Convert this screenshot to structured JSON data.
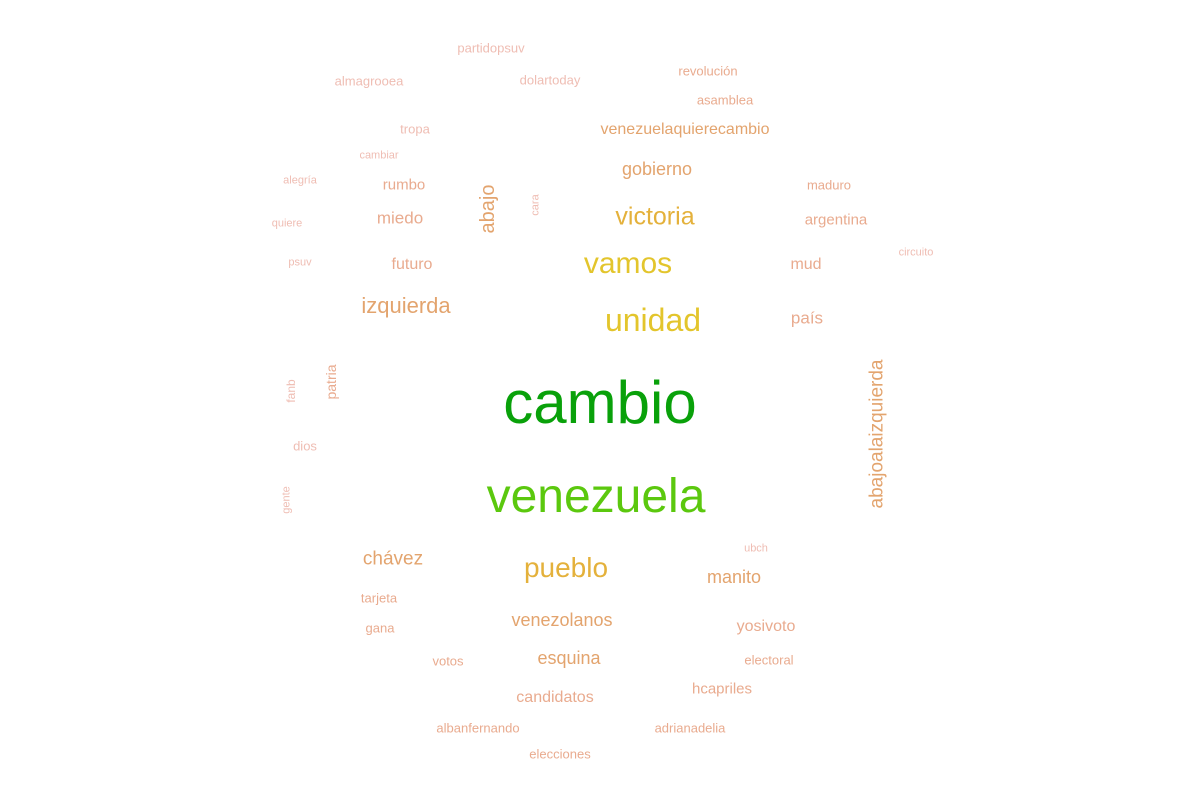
{
  "palette": {
    "background": "#ffffff",
    "top": "#09a10a",
    "second": "#5bc80e",
    "gold": "#e3c52c",
    "amber": "#e4b13b",
    "tan": "#e3a46e",
    "salmon": "#e9ab8f",
    "pink": "#efbdb3"
  },
  "words": [
    {
      "text": "cambio",
      "tier": "top"
    },
    {
      "text": "venezuela",
      "tier": "second"
    },
    {
      "text": "vamos",
      "tier": "gold"
    },
    {
      "text": "unidad",
      "tier": "gold"
    },
    {
      "text": "victoria",
      "tier": "amber"
    },
    {
      "text": "pueblo",
      "tier": "amber"
    },
    {
      "text": "izquierda",
      "tier": "tan"
    },
    {
      "text": "abajoalaizquierda",
      "tier": "tan"
    },
    {
      "text": "gobierno",
      "tier": "tan"
    },
    {
      "text": "chávez",
      "tier": "tan"
    },
    {
      "text": "manito",
      "tier": "tan"
    },
    {
      "text": "venezolanos",
      "tier": "tan"
    },
    {
      "text": "esquina",
      "tier": "tan"
    },
    {
      "text": "abajo",
      "tier": "tan"
    },
    {
      "text": "venezuelaquierecambio",
      "tier": "tan"
    },
    {
      "text": "miedo",
      "tier": "salmon"
    },
    {
      "text": "futuro",
      "tier": "salmon"
    },
    {
      "text": "mud",
      "tier": "salmon"
    },
    {
      "text": "país",
      "tier": "salmon"
    },
    {
      "text": "yosivoto",
      "tier": "salmon"
    },
    {
      "text": "candidatos",
      "tier": "salmon"
    },
    {
      "text": "hcapriles",
      "tier": "salmon"
    },
    {
      "text": "rumbo",
      "tier": "salmon"
    },
    {
      "text": "argentina",
      "tier": "salmon"
    },
    {
      "text": "maduro",
      "tier": "salmon"
    },
    {
      "text": "asamblea",
      "tier": "salmon"
    },
    {
      "text": "revolución",
      "tier": "salmon"
    },
    {
      "text": "patria",
      "tier": "salmon"
    },
    {
      "text": "tarjeta",
      "tier": "salmon"
    },
    {
      "text": "gana",
      "tier": "salmon"
    },
    {
      "text": "votos",
      "tier": "salmon"
    },
    {
      "text": "electoral",
      "tier": "salmon"
    },
    {
      "text": "albanfernando",
      "tier": "salmon"
    },
    {
      "text": "adrianadelia",
      "tier": "salmon"
    },
    {
      "text": "elecciones",
      "tier": "salmon"
    },
    {
      "text": "partidopsuv",
      "tier": "pink"
    },
    {
      "text": "almagrooea",
      "tier": "pink"
    },
    {
      "text": "dolartoday",
      "tier": "pink"
    },
    {
      "text": "tropa",
      "tier": "pink"
    },
    {
      "text": "cambiar",
      "tier": "pink"
    },
    {
      "text": "alegría",
      "tier": "pink"
    },
    {
      "text": "quiere",
      "tier": "pink"
    },
    {
      "text": "psuv",
      "tier": "pink"
    },
    {
      "text": "cara",
      "tier": "pink"
    },
    {
      "text": "circuito",
      "tier": "pink"
    },
    {
      "text": "fanb",
      "tier": "pink"
    },
    {
      "text": "dios",
      "tier": "pink"
    },
    {
      "text": "gente",
      "tier": "pink"
    },
    {
      "text": "ubch",
      "tier": "pink"
    }
  ]
}
